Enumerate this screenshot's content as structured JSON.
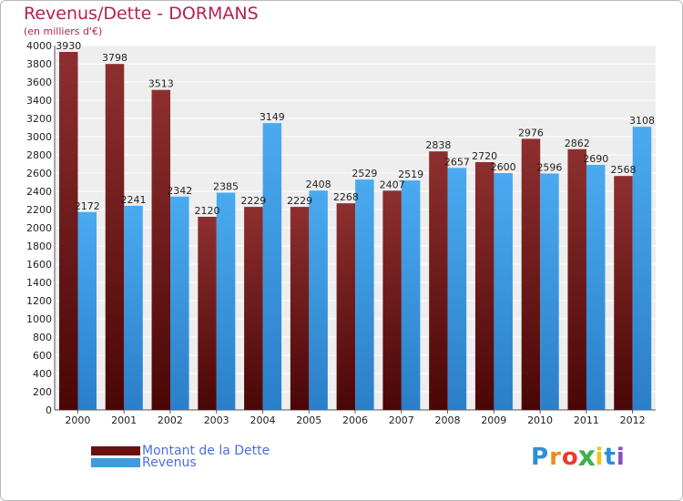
{
  "chart_data": {
    "type": "bar",
    "title": "Revenus/Dette - DORMANS",
    "subtitle": "(en milliers d'€)",
    "categories": [
      "2000",
      "2001",
      "2002",
      "2003",
      "2004",
      "2005",
      "2006",
      "2007",
      "2008",
      "2009",
      "2010",
      "2011",
      "2012"
    ],
    "series": [
      {
        "name": "Montant de la Dette",
        "color": "#7a1a1a",
        "values": [
          3930,
          3798,
          3513,
          2120,
          2229,
          2229,
          2268,
          2407,
          2838,
          2720,
          2976,
          2862,
          2568
        ]
      },
      {
        "name": "Revenus",
        "color": "#3d9be0",
        "values": [
          2172,
          2241,
          2342,
          2385,
          3149,
          2408,
          2529,
          2519,
          2657,
          2600,
          2596,
          2690,
          3108
        ]
      }
    ],
    "ylim": [
      0,
      4000
    ],
    "ytick_step": 200,
    "grid": true,
    "legend_position": "bottom-left"
  },
  "legend": [
    {
      "label": "Montant de la Dette",
      "color": "#6b0f0f"
    },
    {
      "label": "Revenus",
      "color": "#3d9be0"
    }
  ],
  "logo": {
    "text": "Proxiti",
    "letters": [
      {
        "ch": "P",
        "color": "#2a8fd6"
      },
      {
        "ch": "r",
        "color": "#f08a1c"
      },
      {
        "ch": "o",
        "color": "#e83c2c"
      },
      {
        "ch": "x",
        "color": "#3bb24a"
      },
      {
        "ch": "i",
        "color": "#f2c21a"
      },
      {
        "ch": "t",
        "color": "#2a8fd6"
      },
      {
        "ch": "i",
        "color": "#8a4cc2"
      }
    ]
  }
}
